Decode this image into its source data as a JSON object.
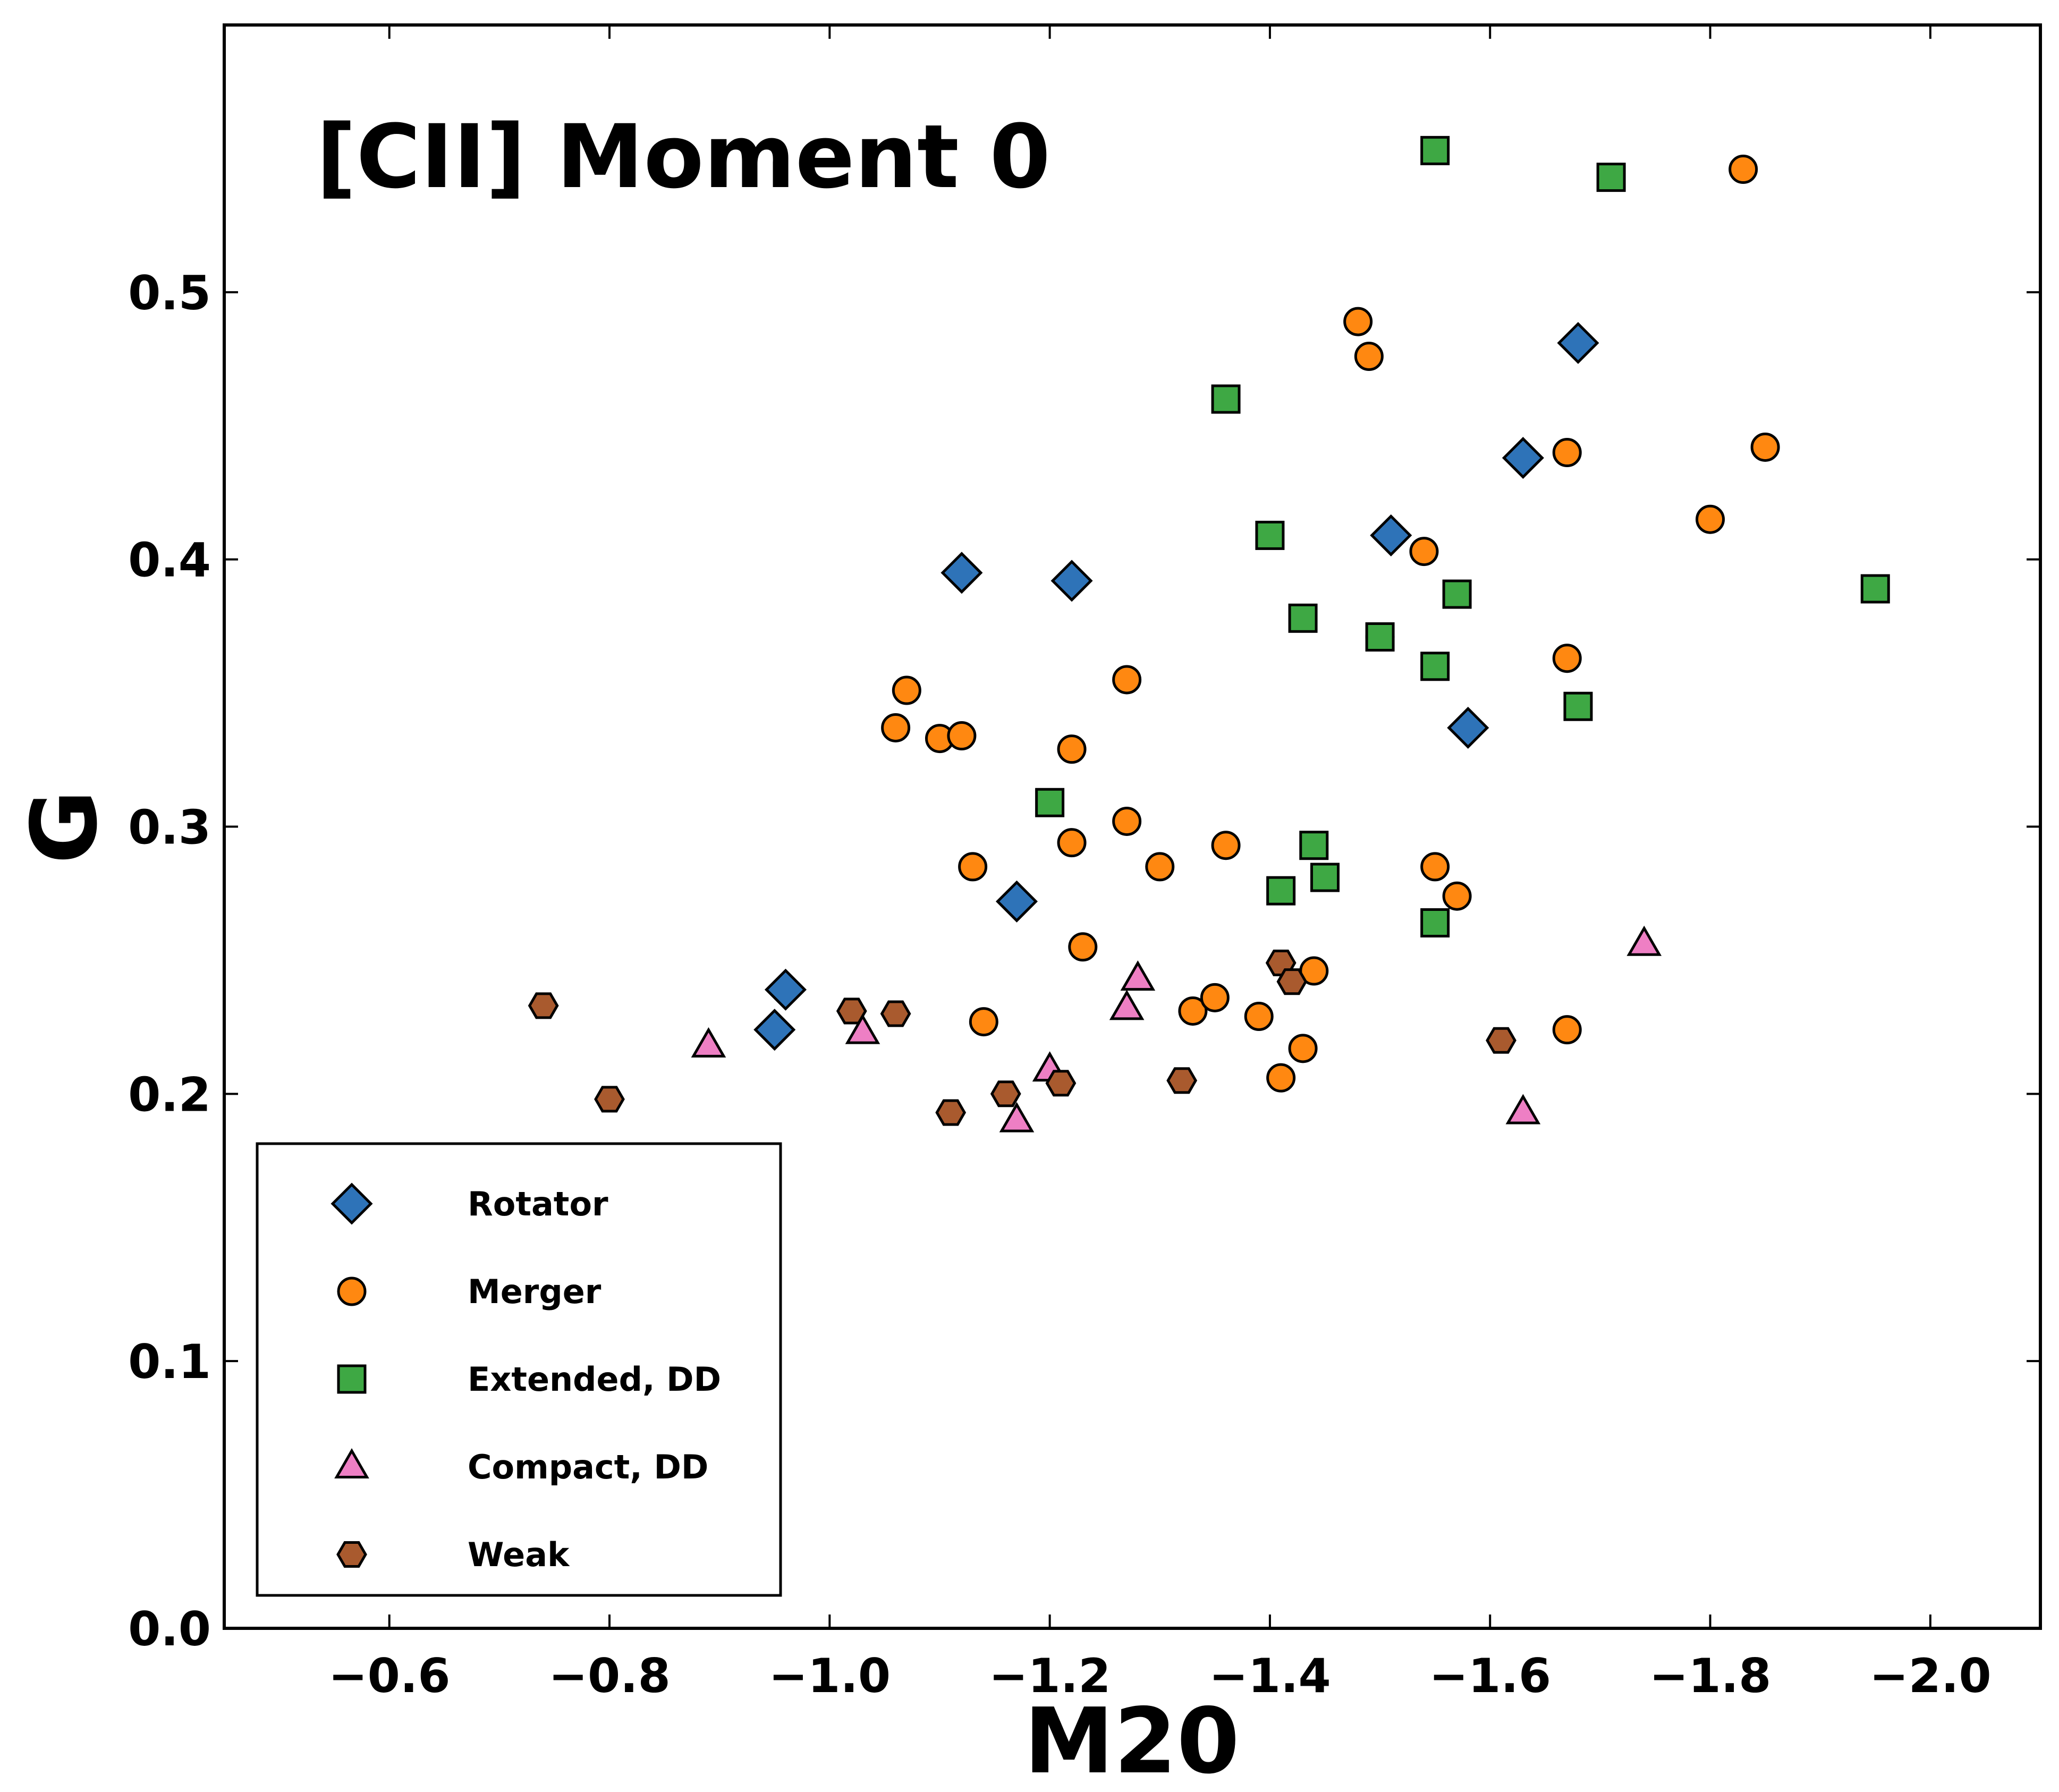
{
  "chart_data": {
    "type": "scatter",
    "title": "[CII] Moment 0",
    "xlabel": "M20",
    "ylabel": "G",
    "xlim": [
      -0.45,
      -2.1
    ],
    "ylim": [
      0.0,
      0.6
    ],
    "x_inverted": true,
    "xticks": [
      -0.6,
      -0.8,
      -1.0,
      -1.2,
      -1.4,
      -1.6,
      -1.8,
      -2.0
    ],
    "xtick_labels": [
      "−0.6",
      "−0.8",
      "−1.0",
      "−1.2",
      "−1.4",
      "−1.6",
      "−1.8",
      "−2.0"
    ],
    "yticks": [
      0.0,
      0.1,
      0.2,
      0.3,
      0.4,
      0.5
    ],
    "ytick_labels": [
      "0.0",
      "0.1",
      "0.2",
      "0.3",
      "0.4",
      "0.5"
    ],
    "grid": false,
    "legend_position": "lower-left",
    "series": [
      {
        "name": "Rotator",
        "marker": "diamond",
        "color": "#2E73B8",
        "points": [
          [
            -0.96,
            0.239
          ],
          [
            -0.95,
            0.224
          ],
          [
            -1.12,
            0.395
          ],
          [
            -1.22,
            0.392
          ],
          [
            -1.17,
            0.272
          ],
          [
            -1.51,
            0.409
          ],
          [
            -1.58,
            0.337
          ],
          [
            -1.63,
            0.438
          ],
          [
            -1.68,
            0.481
          ]
        ]
      },
      {
        "name": "Merger",
        "marker": "circle",
        "color": "#FF8811",
        "points": [
          [
            -1.07,
            0.351
          ],
          [
            -1.06,
            0.337
          ],
          [
            -1.1,
            0.333
          ],
          [
            -1.12,
            0.334
          ],
          [
            -1.13,
            0.285
          ],
          [
            -1.14,
            0.227
          ],
          [
            -1.22,
            0.329
          ],
          [
            -1.22,
            0.294
          ],
          [
            -1.23,
            0.255
          ],
          [
            -1.27,
            0.355
          ],
          [
            -1.27,
            0.302
          ],
          [
            -1.3,
            0.285
          ],
          [
            -1.33,
            0.231
          ],
          [
            -1.35,
            0.236
          ],
          [
            -1.36,
            0.293
          ],
          [
            -1.39,
            0.229
          ],
          [
            -1.41,
            0.206
          ],
          [
            -1.43,
            0.217
          ],
          [
            -1.44,
            0.246
          ],
          [
            -1.48,
            0.489
          ],
          [
            -1.49,
            0.476
          ],
          [
            -1.5,
            0.371
          ],
          [
            -1.54,
            0.403
          ],
          [
            -1.55,
            0.285
          ],
          [
            -1.57,
            0.274
          ],
          [
            -1.67,
            0.363
          ],
          [
            -1.67,
            0.44
          ],
          [
            -1.67,
            0.224
          ],
          [
            -1.8,
            0.415
          ],
          [
            -1.83,
            0.546
          ],
          [
            -1.85,
            0.442
          ]
        ]
      },
      {
        "name": "Extended, DD",
        "marker": "square",
        "color": "#3EA844",
        "points": [
          [
            -1.2,
            0.309
          ],
          [
            -1.36,
            0.46
          ],
          [
            -1.4,
            0.409
          ],
          [
            -1.41,
            0.276
          ],
          [
            -1.43,
            0.378
          ],
          [
            -1.44,
            0.293
          ],
          [
            -1.45,
            0.281
          ],
          [
            -1.5,
            0.371
          ],
          [
            -1.55,
            0.553
          ],
          [
            -1.55,
            0.36
          ],
          [
            -1.55,
            0.264
          ],
          [
            -1.57,
            0.387
          ],
          [
            -1.68,
            0.345
          ],
          [
            -1.71,
            0.543
          ],
          [
            -1.95,
            0.389
          ]
        ]
      },
      {
        "name": "Compact, DD",
        "marker": "triangle",
        "color": "#EE7FC4",
        "points": [
          [
            -0.89,
            0.218
          ],
          [
            -1.03,
            0.223
          ],
          [
            -1.17,
            0.19
          ],
          [
            -1.2,
            0.209
          ],
          [
            -1.27,
            0.232
          ],
          [
            -1.28,
            0.243
          ],
          [
            -1.63,
            0.193
          ],
          [
            -1.74,
            0.256
          ]
        ]
      },
      {
        "name": "Weak",
        "marker": "hexagon",
        "color": "#A95A2E",
        "points": [
          [
            -0.74,
            0.233
          ],
          [
            -0.8,
            0.198
          ],
          [
            -1.02,
            0.231
          ],
          [
            -1.06,
            0.23
          ],
          [
            -1.11,
            0.193
          ],
          [
            -1.16,
            0.2
          ],
          [
            -1.21,
            0.204
          ],
          [
            -1.32,
            0.205
          ],
          [
            -1.41,
            0.249
          ],
          [
            -1.42,
            0.242
          ],
          [
            -1.61,
            0.22
          ]
        ]
      }
    ]
  }
}
